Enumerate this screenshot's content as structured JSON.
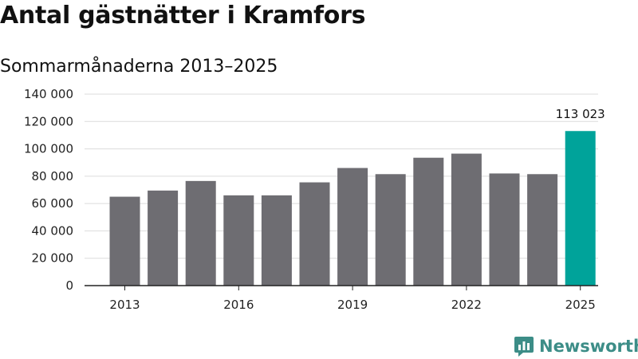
{
  "chart_data": {
    "type": "bar",
    "title": "Antal gästnätter i Kramfors",
    "subtitle": "Sommarmånaderna 2013–2025",
    "xlabel": "",
    "ylabel": "",
    "categories": [
      "2013",
      "2014",
      "2015",
      "2016",
      "2017",
      "2018",
      "2019",
      "2020",
      "2021",
      "2022",
      "2023",
      "2024",
      "2025"
    ],
    "values": [
      65000,
      69500,
      76500,
      66000,
      66000,
      75500,
      86000,
      81500,
      93500,
      96500,
      82000,
      81500,
      113023
    ],
    "ylim": [
      0,
      140000
    ],
    "yticks": [
      0,
      20000,
      40000,
      60000,
      80000,
      100000,
      120000,
      140000
    ],
    "ytick_labels": [
      "0",
      "20 000",
      "40 000",
      "60 000",
      "80 000",
      "100 000",
      "120 000",
      "140 000"
    ],
    "xtick_labels": [
      "2013",
      "2016",
      "2019",
      "2022",
      "2025"
    ],
    "highlight_label": "113 023",
    "grid": true,
    "colors": {
      "bar": "#6e6d72",
      "highlight": "#00a39a"
    }
  },
  "brand": {
    "name": "Newsworthy",
    "icon": "newsworthy-logo-icon",
    "color": "#3c8d87"
  }
}
